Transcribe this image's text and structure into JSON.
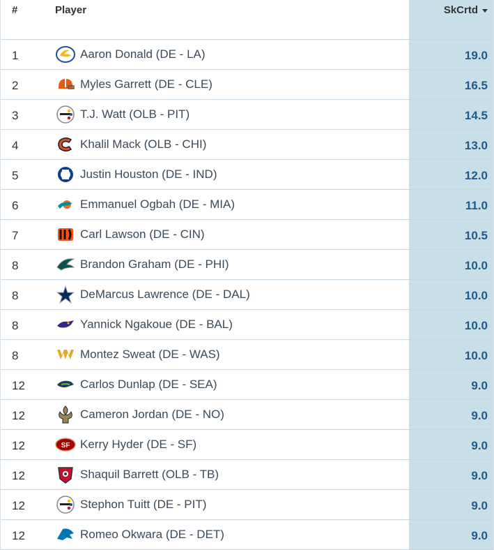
{
  "header": {
    "rank_label": "#",
    "player_label": "Player",
    "sack_label": "SkCrtd",
    "sort_icon": "caret-down-icon"
  },
  "rows": [
    {
      "rank": "1",
      "player": "Aaron Donald (DE - LA)",
      "team": "LA",
      "value": "19.0"
    },
    {
      "rank": "2",
      "player": "Myles Garrett (DE - CLE)",
      "team": "CLE",
      "value": "16.5"
    },
    {
      "rank": "3",
      "player": "T.J. Watt (OLB - PIT)",
      "team": "PIT",
      "value": "14.5"
    },
    {
      "rank": "4",
      "player": "Khalil Mack (OLB - CHI)",
      "team": "CHI",
      "value": "13.0"
    },
    {
      "rank": "5",
      "player": "Justin Houston (DE - IND)",
      "team": "IND",
      "value": "12.0"
    },
    {
      "rank": "6",
      "player": "Emmanuel Ogbah (DE - MIA)",
      "team": "MIA",
      "value": "11.0"
    },
    {
      "rank": "7",
      "player": "Carl Lawson (DE - CIN)",
      "team": "CIN",
      "value": "10.5"
    },
    {
      "rank": "8",
      "player": "Brandon Graham (DE - PHI)",
      "team": "PHI",
      "value": "10.0"
    },
    {
      "rank": "8",
      "player": "DeMarcus Lawrence (DE - DAL)",
      "team": "DAL",
      "value": "10.0"
    },
    {
      "rank": "8",
      "player": "Yannick Ngakoue (DE - BAL)",
      "team": "BAL",
      "value": "10.0"
    },
    {
      "rank": "8",
      "player": "Montez Sweat (DE - WAS)",
      "team": "WAS",
      "value": "10.0"
    },
    {
      "rank": "12",
      "player": "Carlos Dunlap (DE - SEA)",
      "team": "SEA",
      "value": "9.0"
    },
    {
      "rank": "12",
      "player": "Cameron Jordan (DE - NO)",
      "team": "NO",
      "value": "9.0"
    },
    {
      "rank": "12",
      "player": "Kerry Hyder (DE - SF)",
      "team": "SF",
      "value": "9.0"
    },
    {
      "rank": "12",
      "player": "Shaquil Barrett (OLB - TB)",
      "team": "TB",
      "value": "9.0"
    },
    {
      "rank": "12",
      "player": "Stephon Tuitt (DE - PIT)",
      "team": "PIT",
      "value": "9.0"
    },
    {
      "rank": "12",
      "player": "Romeo Okwara (DE - DET)",
      "team": "DET",
      "value": "9.0"
    }
  ],
  "colors": {
    "highlight_column": "#c8dfe8",
    "value_text": "#1f5a8e",
    "row_border": "#c9d6df"
  }
}
